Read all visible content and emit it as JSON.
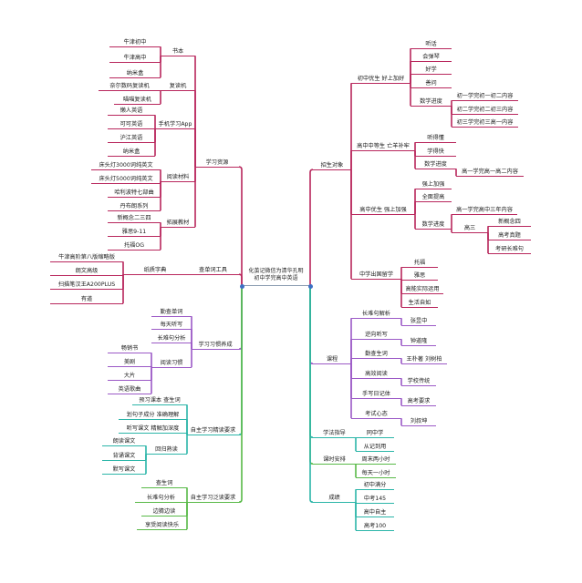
{
  "root": {
    "line1": "化茧记微信为清华孔明",
    "line2": "初中学完高中英语"
  },
  "colors": {
    "magenta": "#b8265c",
    "purple": "#9b59c6",
    "teal": "#2bb5a8",
    "green": "#58b947"
  },
  "left": [
    {
      "label": "学习资源",
      "children": [
        {
          "label": "书本",
          "children": [
            {
              "label": "牛津初中"
            },
            {
              "label": "牛津高中"
            },
            {
              "label": "纳米盒"
            }
          ]
        },
        {
          "label": "复读机",
          "children": [
            {
              "label": "奈尔数码复读机"
            },
            {
              "label": "喵喵复读机"
            }
          ]
        },
        {
          "label": "手机学习App",
          "children": [
            {
              "label": "懒人英语"
            },
            {
              "label": "可可英语"
            },
            {
              "label": "沪江英语"
            },
            {
              "label": "纳米盒"
            }
          ]
        },
        {
          "label": "阅读材料",
          "children": [
            {
              "label": "床头灯3000词纯英文"
            },
            {
              "label": "床头灯5000词纯英文"
            },
            {
              "label": "哈利波特七部曲"
            },
            {
              "label": "丹布朗系列"
            }
          ]
        },
        {
          "label": "拓展教材",
          "children": [
            {
              "label": "新概念二三四"
            },
            {
              "label": "雅思9-11"
            },
            {
              "label": "托福OG"
            }
          ]
        }
      ]
    },
    {
      "label": "查单词工具",
      "children": [
        {
          "label": "纸质字典",
          "children": [
            {
              "label": "牛津高阶第八版缩略版"
            },
            {
              "label": "朗文高级"
            },
            {
              "label": "扫描笔汉王A200PLUS"
            },
            {
              "label": "有道"
            }
          ]
        }
      ]
    },
    {
      "label": "学习习惯养成",
      "children": [
        {
          "label": "勤查单词"
        },
        {
          "label": "每天听写"
        },
        {
          "label": "长难句分析"
        },
        {
          "label": "阅读习惯",
          "children": [
            {
              "label": "畅销书"
            },
            {
              "label": "美剧"
            },
            {
              "label": "大片"
            },
            {
              "label": "英语歌曲"
            }
          ]
        }
      ]
    },
    {
      "label": "自主学习精读要求",
      "children": [
        {
          "label": "预习课本 查生词"
        },
        {
          "label": "划句子成分 准确理解"
        },
        {
          "label": "听写课文 精解加深度"
        },
        {
          "label": "回归熟读",
          "children": [
            {
              "label": "朗读课文"
            },
            {
              "label": "背诵课文"
            },
            {
              "label": "默写课文"
            }
          ]
        }
      ]
    },
    {
      "label": "自主学习泛读要求",
      "children": [
        {
          "label": "查生词"
        },
        {
          "label": "长难句分析"
        },
        {
          "label": "边猜边读"
        },
        {
          "label": "享受阅读快乐"
        }
      ]
    }
  ],
  "right": [
    {
      "label": "招生对象",
      "children": [
        {
          "label": "初中优生 好上加好",
          "children": [
            {
              "label": "听话"
            },
            {
              "label": "会弹琴"
            },
            {
              "label": "好学"
            },
            {
              "label": "善问"
            },
            {
              "label": "数学进度",
              "children": [
                {
                  "label": "初一学完初一初二内容"
                },
                {
                  "label": "初二学完初二初三内容"
                },
                {
                  "label": "初三学完初三高一内容"
                }
              ]
            }
          ]
        },
        {
          "label": "高中中等生 亡羊补牢",
          "children": [
            {
              "label": "听得懂"
            },
            {
              "label": "学得快"
            },
            {
              "label": "数学进度",
              "children": [
                {
                  "label": "高一学完高一高二内容"
                }
              ]
            }
          ]
        },
        {
          "label": "高中优生 强上加强",
          "children": [
            {
              "label": "强上加强"
            },
            {
              "label": "全面提高"
            },
            {
              "label": "数学进度",
              "children": [
                {
                  "label": "高一学完高中三年内容"
                },
                {
                  "label": "高三",
                  "children": [
                    {
                      "label": "新概念四"
                    },
                    {
                      "label": "高考真题"
                    },
                    {
                      "label": "考研长难句"
                    }
                  ]
                }
              ]
            }
          ]
        },
        {
          "label": "中学出国留学",
          "children": [
            {
              "label": "托福"
            },
            {
              "label": "雅思"
            },
            {
              "label": "高能实际运用"
            },
            {
              "label": "生活自如"
            }
          ]
        }
      ]
    },
    {
      "label": "课程",
      "children": [
        {
          "label": "长难句解析",
          "children": [
            {
              "label": "张昱中"
            }
          ]
        },
        {
          "label": "逆向听写",
          "children": [
            {
              "label": "钟道隆"
            }
          ]
        },
        {
          "label": "勤查生词",
          "children": [
            {
              "label": "王朴著 刘树柏"
            }
          ]
        },
        {
          "label": "高效阅读",
          "children": [
            {
              "label": "学校传统"
            }
          ]
        },
        {
          "label": "手写日记体",
          "children": [
            {
              "label": "高考要求"
            }
          ]
        },
        {
          "label": "考试心态",
          "children": [
            {
              "label": "刘叔坤"
            }
          ]
        }
      ]
    },
    {
      "label": "学法指导",
      "children": [
        {
          "label": "同中学"
        },
        {
          "label": "从记到用"
        }
      ]
    },
    {
      "label": "课时安排",
      "children": [
        {
          "label": "周末两小时"
        },
        {
          "label": "每天一小时"
        }
      ]
    },
    {
      "label": "成绩",
      "children": [
        {
          "label": "初中满分"
        },
        {
          "label": "中考145"
        },
        {
          "label": "高中自主"
        },
        {
          "label": "高考100"
        }
      ]
    }
  ]
}
